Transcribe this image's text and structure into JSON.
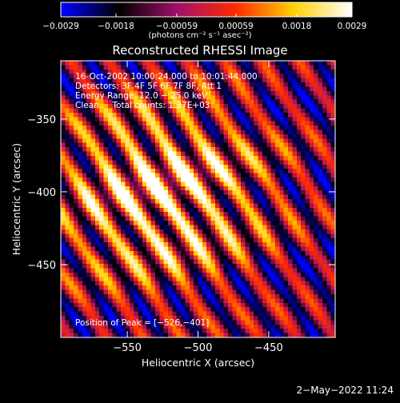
{
  "chart_data": {
    "type": "heatmap",
    "title": "Reconstructed RHESSI Image",
    "xlabel": "Heliocentric X (arcsec)",
    "ylabel": "Heliocentric Y (arcsec)",
    "xlim": [
      -597,
      -403
    ],
    "ylim": [
      -500,
      -310
    ],
    "x_ticks": [
      {
        "value": -550,
        "label": "−550"
      },
      {
        "value": -500,
        "label": "−500"
      },
      {
        "value": -450,
        "label": "−450"
      }
    ],
    "y_ticks": [
      {
        "value": -350,
        "label": "−350"
      },
      {
        "value": -400,
        "label": "−400"
      },
      {
        "value": -450,
        "label": "−450"
      }
    ],
    "colorbar": {
      "range": [
        -0.0029,
        0.0029
      ],
      "ticks": [
        {
          "value": -0.0029,
          "label": "−0.0029"
        },
        {
          "value": -0.0018,
          "label": "−0.0018"
        },
        {
          "value": -0.00059,
          "label": "−0.00059"
        },
        {
          "value": 0.00059,
          "label": "0.00059"
        },
        {
          "value": 0.0018,
          "label": "0.0018"
        },
        {
          "value": 0.0029,
          "label": "0.0029"
        }
      ],
      "units_label": "(photons cm⁻² s⁻¹ asec⁻²)",
      "colors": [
        "#0000ff",
        "#000000",
        "#a0106a",
        "#ff2a00",
        "#ffd000",
        "#ffffff"
      ]
    },
    "annotations": [
      "16-Oct-2002 10:00:24.000 to 10:01:44.000",
      "Detectors: 3F 4F 5F 6F 7F 8F, Att 1",
      "Energy Range: 12.0 − 25.0 keV",
      "Clean     Total counts: 1.37E+03"
    ],
    "peak_label": "Position of Peak = [−526,−401]",
    "peak": {
      "x": -526,
      "y": -401
    }
  },
  "footer": {
    "date": "2−May−2022 11:24"
  }
}
